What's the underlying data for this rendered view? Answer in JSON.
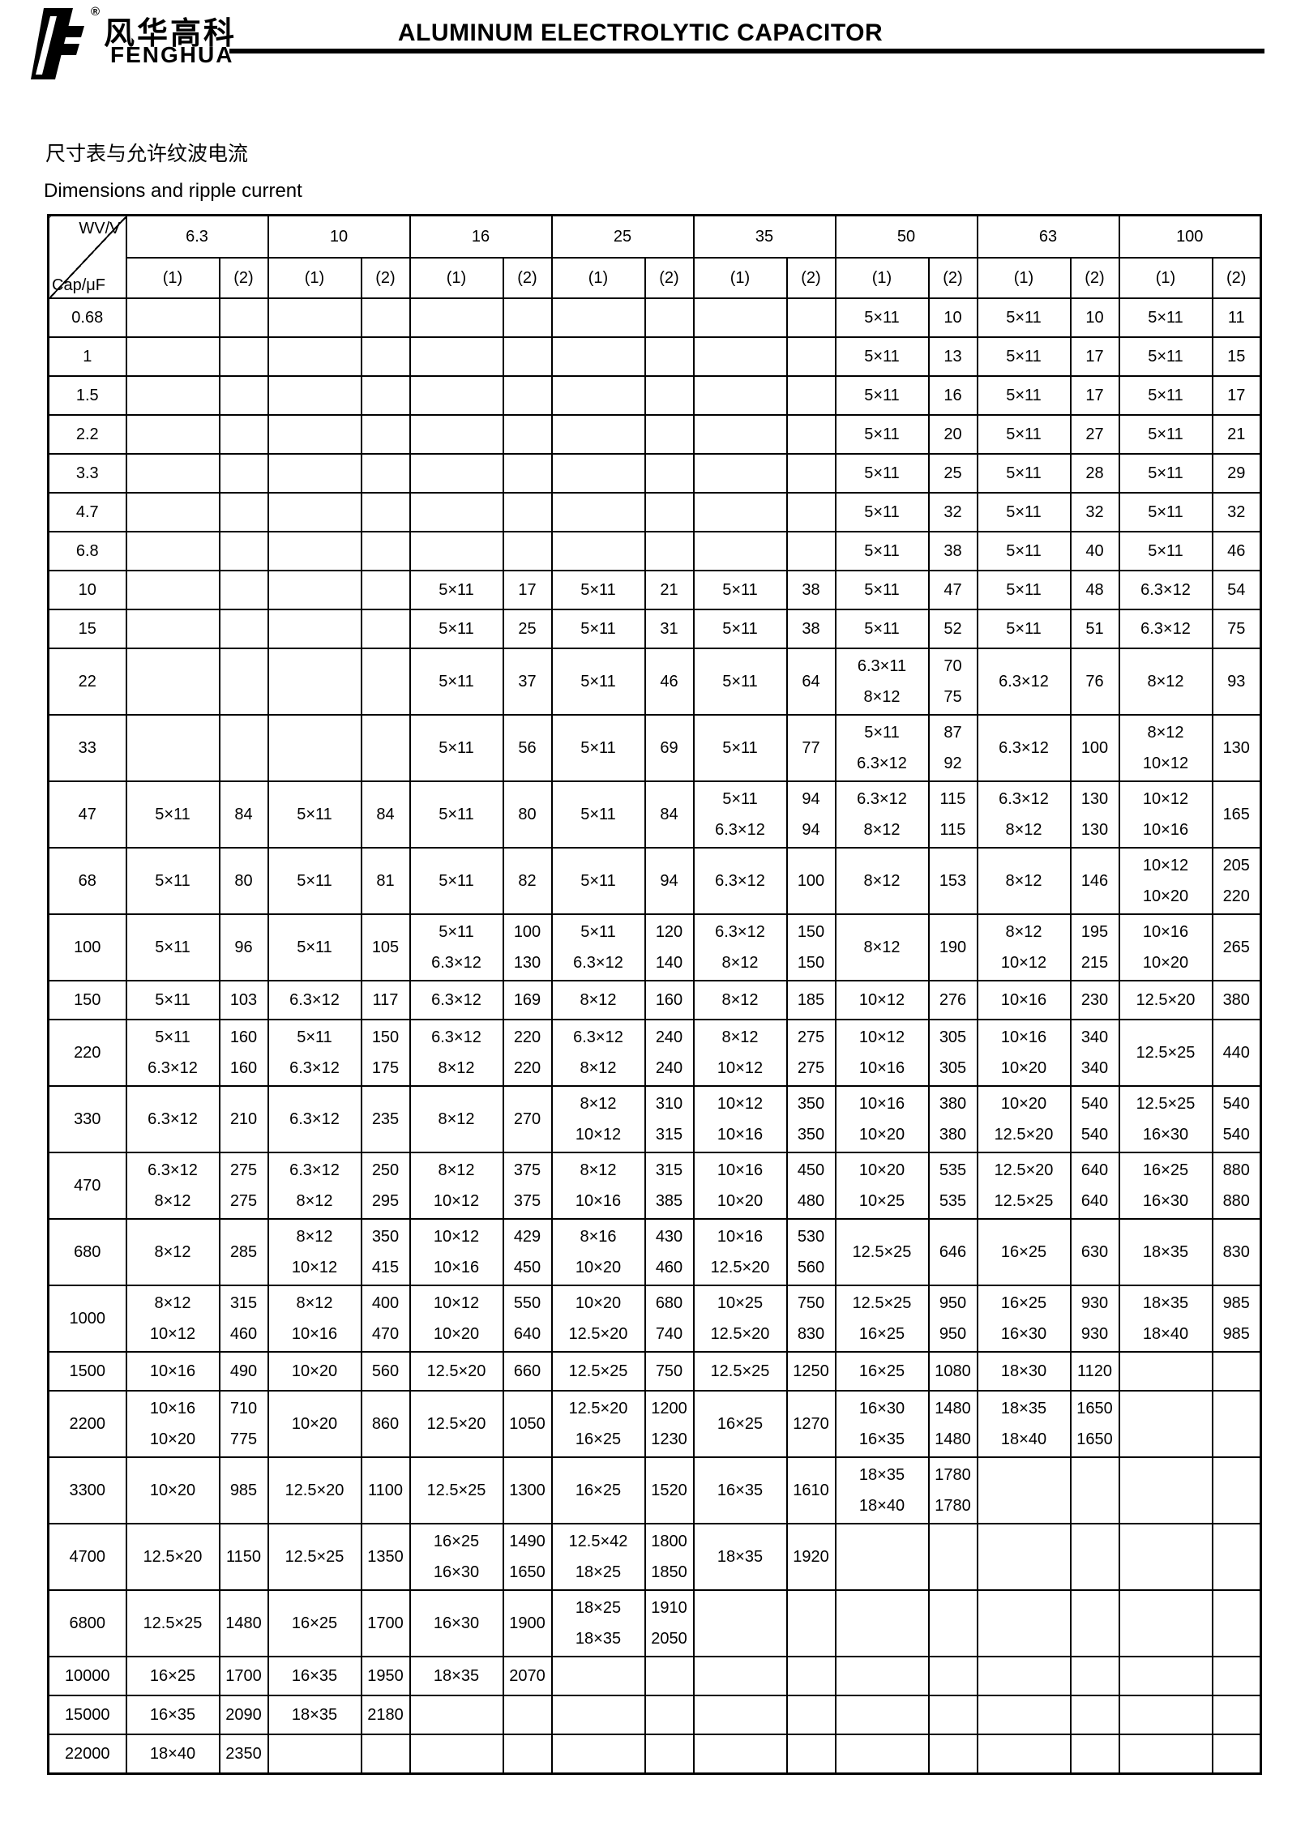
{
  "colors": {
    "ink": "#000000",
    "background": "#ffffff"
  },
  "header": {
    "logo_icon": "fenghua-logo-icon",
    "reg_mark": "®",
    "brand_cn": "风华高科",
    "brand_en": "FENGHUA",
    "title": "ALUMINUM ELECTROLYTIC CAPACITOR"
  },
  "section": {
    "title_cn": "尺寸表与允许纹波电流",
    "title_en": "Dimensions and ripple current"
  },
  "table": {
    "corner": {
      "top_right": "WV/V",
      "bottom_left": "Cap/μF"
    },
    "voltages": [
      "6.3",
      "10",
      "16",
      "25",
      "35",
      "50",
      "63",
      "100"
    ],
    "sub_headers": [
      "(1)",
      "(2)"
    ],
    "rows": [
      {
        "cap": "0.68",
        "cells": [
          "",
          "",
          "",
          "",
          "",
          "",
          "",
          "",
          "",
          "",
          "5×11",
          "10",
          "5×11",
          "10",
          "5×11",
          "11"
        ]
      },
      {
        "cap": "1",
        "cells": [
          "",
          "",
          "",
          "",
          "",
          "",
          "",
          "",
          "",
          "",
          "5×11",
          "13",
          "5×11",
          "17",
          "5×11",
          "15"
        ]
      },
      {
        "cap": "1.5",
        "cells": [
          "",
          "",
          "",
          "",
          "",
          "",
          "",
          "",
          "",
          "",
          "5×11",
          "16",
          "5×11",
          "17",
          "5×11",
          "17"
        ]
      },
      {
        "cap": "2.2",
        "cells": [
          "",
          "",
          "",
          "",
          "",
          "",
          "",
          "",
          "",
          "",
          "5×11",
          "20",
          "5×11",
          "27",
          "5×11",
          "21"
        ]
      },
      {
        "cap": "3.3",
        "cells": [
          "",
          "",
          "",
          "",
          "",
          "",
          "",
          "",
          "",
          "",
          "5×11",
          "25",
          "5×11",
          "28",
          "5×11",
          "29"
        ]
      },
      {
        "cap": "4.7",
        "cells": [
          "",
          "",
          "",
          "",
          "",
          "",
          "",
          "",
          "",
          "",
          "5×11",
          "32",
          "5×11",
          "32",
          "5×11",
          "32"
        ]
      },
      {
        "cap": "6.8",
        "cells": [
          "",
          "",
          "",
          "",
          "",
          "",
          "",
          "",
          "",
          "",
          "5×11",
          "38",
          "5×11",
          "40",
          "5×11",
          "46"
        ]
      },
      {
        "cap": "10",
        "cells": [
          "",
          "",
          "",
          "",
          "5×11",
          "17",
          "5×11",
          "21",
          "5×11",
          "38",
          "5×11",
          "47",
          "5×11",
          "48",
          "6.3×12",
          "54"
        ]
      },
      {
        "cap": "15",
        "cells": [
          "",
          "",
          "",
          "",
          "5×11",
          "25",
          "5×11",
          "31",
          "5×11",
          "38",
          "5×11",
          "52",
          "5×11",
          "51",
          "6.3×12",
          "75"
        ]
      },
      {
        "cap": "22",
        "cells": [
          "",
          "",
          "",
          "",
          "5×11",
          "37",
          "5×11",
          "46",
          "5×11",
          "64",
          "6.3×11\n8×12",
          "70\n75",
          "6.3×12",
          "76",
          "8×12",
          "93"
        ]
      },
      {
        "cap": "33",
        "cells": [
          "",
          "",
          "",
          "",
          "5×11",
          "56",
          "5×11",
          "69",
          "5×11",
          "77",
          "5×11\n6.3×12",
          "87\n92",
          "6.3×12",
          "100",
          "8×12\n10×12",
          "130"
        ]
      },
      {
        "cap": "47",
        "cells": [
          "5×11",
          "84",
          "5×11",
          "84",
          "5×11",
          "80",
          "5×11",
          "84",
          "5×11\n6.3×12",
          "94\n94",
          "6.3×12\n8×12",
          "115\n115",
          "6.3×12\n8×12",
          "130\n130",
          "10×12\n10×16",
          "165"
        ]
      },
      {
        "cap": "68",
        "cells": [
          "5×11",
          "80",
          "5×11",
          "81",
          "5×11",
          "82",
          "5×11",
          "94",
          "6.3×12",
          "100",
          "8×12",
          "153",
          "8×12",
          "146",
          "10×12\n10×20",
          "205\n220"
        ]
      },
      {
        "cap": "100",
        "cells": [
          "5×11",
          "96",
          "5×11",
          "105",
          "5×11\n6.3×12",
          "100\n130",
          "5×11\n6.3×12",
          "120\n140",
          "6.3×12\n8×12",
          "150\n150",
          "8×12",
          "190",
          "8×12\n10×12",
          "195\n215",
          "10×16\n10×20",
          "265"
        ]
      },
      {
        "cap": "150",
        "cells": [
          "5×11",
          "103",
          "6.3×12",
          "117",
          "6.3×12",
          "169",
          "8×12",
          "160",
          "8×12",
          "185",
          "10×12",
          "276",
          "10×16",
          "230",
          "12.5×20",
          "380"
        ]
      },
      {
        "cap": "220",
        "cells": [
          "5×11\n6.3×12",
          "160\n160",
          "5×11\n6.3×12",
          "150\n175",
          "6.3×12\n8×12",
          "220\n220",
          "6.3×12\n8×12",
          "240\n240",
          "8×12\n10×12",
          "275\n275",
          "10×12\n10×16",
          "305\n305",
          "10×16\n10×20",
          "340\n340",
          "12.5×25",
          "440"
        ]
      },
      {
        "cap": "330",
        "cells": [
          "6.3×12",
          "210",
          "6.3×12",
          "235",
          "8×12",
          "270",
          "8×12\n10×12",
          "310\n315",
          "10×12\n10×16",
          "350\n350",
          "10×16\n10×20",
          "380\n380",
          "10×20\n12.5×20",
          "540\n540",
          "12.5×25\n16×30",
          "540\n540"
        ]
      },
      {
        "cap": "470",
        "cells": [
          "6.3×12\n8×12",
          "275\n275",
          "6.3×12\n8×12",
          "250\n295",
          "8×12\n10×12",
          "375\n375",
          "8×12\n10×16",
          "315\n385",
          "10×16\n10×20",
          "450\n480",
          "10×20\n10×25",
          "535\n535",
          "12.5×20\n12.5×25",
          "640\n640",
          "16×25\n16×30",
          "880\n880"
        ]
      },
      {
        "cap": "680",
        "cells": [
          "8×12",
          "285",
          "8×12\n10×12",
          "350\n415",
          "10×12\n10×16",
          "429\n450",
          "8×16\n10×20",
          "430\n460",
          "10×16\n12.5×20",
          "530\n560",
          "12.5×25",
          "646",
          "16×25",
          "630",
          "18×35",
          "830"
        ]
      },
      {
        "cap": "1000",
        "cells": [
          "8×12\n10×12",
          "315\n460",
          "8×12\n10×16",
          "400\n470",
          "10×12\n10×20",
          "550\n640",
          "10×20\n12.5×20",
          "680\n740",
          "10×25\n12.5×20",
          "750\n830",
          "12.5×25\n16×25",
          "950\n950",
          "16×25\n16×30",
          "930\n930",
          "18×35\n18×40",
          "985\n985"
        ]
      },
      {
        "cap": "1500",
        "cells": [
          "10×16",
          "490",
          "10×20",
          "560",
          "12.5×20",
          "660",
          "12.5×25",
          "750",
          "12.5×25",
          "1250",
          "16×25",
          "1080",
          "18×30",
          "1120",
          "",
          ""
        ]
      },
      {
        "cap": "2200",
        "cells": [
          "10×16\n10×20",
          "710\n775",
          "10×20",
          "860",
          "12.5×20",
          "1050",
          "12.5×20\n16×25",
          "1200\n1230",
          "16×25",
          "1270",
          "16×30\n16×35",
          "1480\n1480",
          "18×35\n18×40",
          "1650\n1650",
          "",
          ""
        ]
      },
      {
        "cap": "3300",
        "cells": [
          "10×20",
          "985",
          "12.5×20",
          "1100",
          "12.5×25",
          "1300",
          "16×25",
          "1520",
          "16×35",
          "1610",
          "18×35\n18×40",
          "1780\n1780",
          "",
          "",
          "",
          ""
        ]
      },
      {
        "cap": "4700",
        "cells": [
          "12.5×20",
          "1150",
          "12.5×25",
          "1350",
          "16×25\n16×30",
          "1490\n1650",
          "12.5×42\n18×25",
          "1800\n1850",
          "18×35",
          "1920",
          "",
          "",
          "",
          "",
          "",
          ""
        ]
      },
      {
        "cap": "6800",
        "cells": [
          "12.5×25",
          "1480",
          "16×25",
          "1700",
          "16×30",
          "1900",
          "18×25\n18×35",
          "1910\n2050",
          "",
          "",
          "",
          "",
          "",
          "",
          "",
          ""
        ]
      },
      {
        "cap": "10000",
        "cells": [
          "16×25",
          "1700",
          "16×35",
          "1950",
          "18×35",
          "2070",
          "",
          "",
          "",
          "",
          "",
          "",
          "",
          "",
          "",
          ""
        ]
      },
      {
        "cap": "15000",
        "cells": [
          "16×35",
          "2090",
          "18×35",
          "2180",
          "",
          "",
          "",
          "",
          "",
          "",
          "",
          "",
          "",
          "",
          "",
          ""
        ]
      },
      {
        "cap": "22000",
        "cells": [
          "18×40",
          "2350",
          "",
          "",
          "",
          "",
          "",
          "",
          "",
          "",
          "",
          "",
          "",
          "",
          "",
          ""
        ]
      }
    ]
  }
}
